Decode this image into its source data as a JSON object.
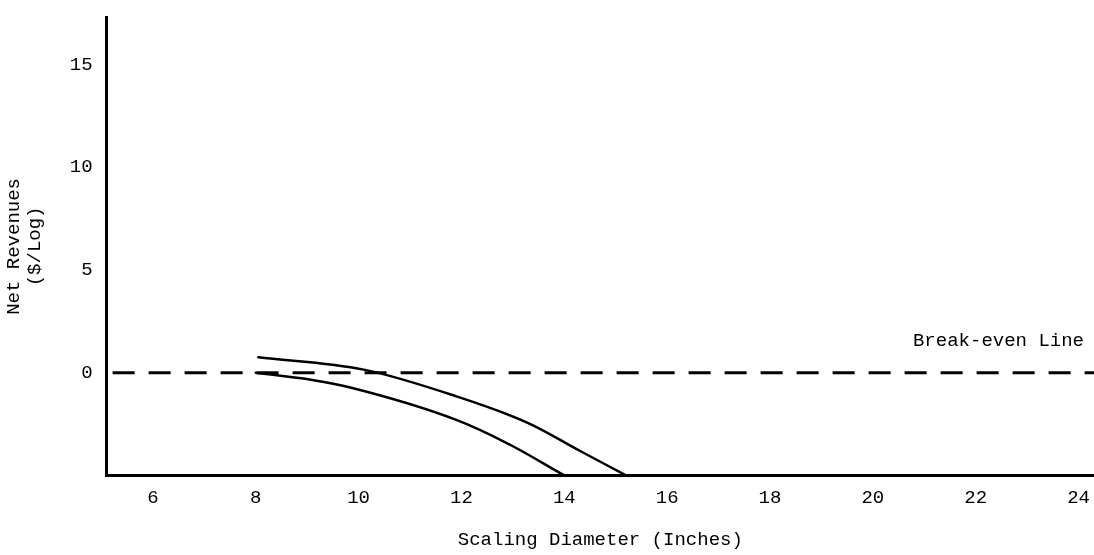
{
  "chart_data": {
    "type": "line",
    "xlabel": "Scaling Diameter (Inches)",
    "ylabel": "Net Revenues\n($/Log)",
    "xlim": [
      5.1,
      24.3
    ],
    "xticks": [
      6,
      8,
      10,
      12,
      14,
      16,
      18,
      20,
      22,
      24
    ],
    "ylim": [
      -5,
      17.3
    ],
    "yticks": [
      0,
      5,
      10,
      15
    ],
    "grid": false,
    "legend": false,
    "marker": "none",
    "line_style": "solid",
    "series": [
      {
        "color": "#000000",
        "x": [
          8,
          9.1,
          9.8,
          11.9,
          12.9,
          14
        ],
        "values": [
          0,
          -0.35,
          -0.7,
          -2.3,
          -3.45,
          -5
        ]
      },
      {
        "color": "#000000",
        "x": [
          8.05,
          10.1,
          11.9,
          13.3,
          14.3,
          15.2
        ],
        "values": [
          0.75,
          0.15,
          -1.15,
          -2.45,
          -3.8,
          -5
        ]
      }
    ],
    "ref_lines": [
      {
        "axis": "y",
        "value": 0,
        "label": "Break-even Line",
        "color": "#000000",
        "line_style": "dashed"
      }
    ]
  }
}
